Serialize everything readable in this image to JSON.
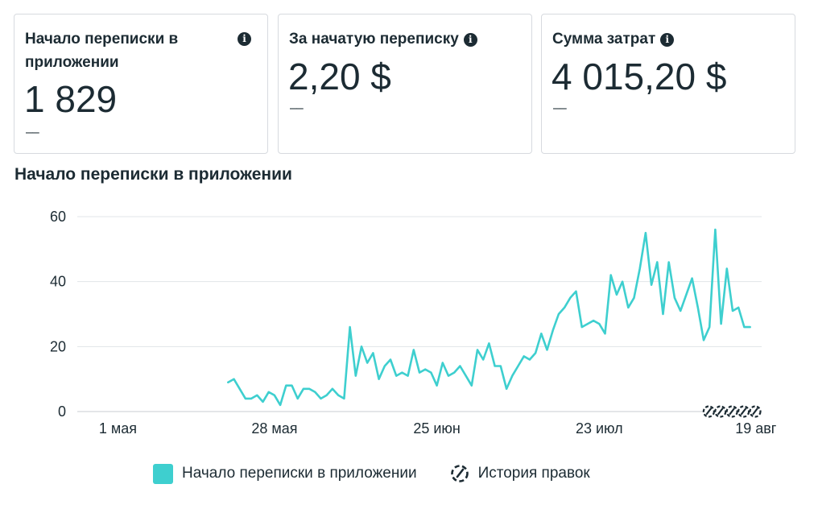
{
  "cards": [
    {
      "label": "Начало переписки в приложении",
      "value": "1 829",
      "delta": "––",
      "info_icon": "info-icon"
    },
    {
      "label": "За начатую переписку",
      "value": "2,20 $",
      "delta": "––",
      "info_icon": "info-icon"
    },
    {
      "label": "Сумма затрат",
      "value": "4 015,20 $",
      "delta": "––",
      "info_icon": "info-icon"
    }
  ],
  "chart_title": "Начало переписки в приложении",
  "colors": {
    "series": "#3ecfcf",
    "grid": "#e1e4e8",
    "text": "#1c2b33"
  },
  "legend": {
    "series_label": "Начало переписки в приложении",
    "history_label": "История правок",
    "history_icon": "edit-history-icon"
  },
  "chart_data": {
    "type": "line",
    "title": "Начало переписки в приложении",
    "xlabel": "",
    "ylabel": "",
    "ylim": [
      0,
      60
    ],
    "yticks": [
      0,
      20,
      40,
      60
    ],
    "x_start": "2024-04-24",
    "x_end": "2024-08-20",
    "xticks": [
      {
        "date": "2024-05-01",
        "label": "1 мая"
      },
      {
        "date": "2024-05-28",
        "label": "28 мая"
      },
      {
        "date": "2024-06-25",
        "label": "25 июн"
      },
      {
        "date": "2024-07-23",
        "label": "23 июл"
      },
      {
        "date": "2024-08-19",
        "label": "19 авг"
      }
    ],
    "grid": true,
    "legend_position": "bottom",
    "series": [
      {
        "name": "Начало переписки в приложении",
        "start_date": "2024-05-20",
        "values": [
          9,
          10,
          7,
          4,
          4,
          5,
          3,
          6,
          5,
          2,
          8,
          8,
          4,
          7,
          7,
          6,
          4,
          5,
          7,
          5,
          4,
          26,
          11,
          20,
          15,
          18,
          10,
          14,
          16,
          11,
          12,
          11,
          19,
          12,
          13,
          12,
          8,
          15,
          11,
          12,
          14,
          11,
          8,
          19,
          16,
          21,
          14,
          14,
          7,
          11,
          14,
          17,
          16,
          18,
          24,
          19,
          25,
          30,
          32,
          35,
          37,
          26,
          27,
          28,
          27,
          24,
          42,
          36,
          40,
          32,
          35,
          44,
          55,
          39,
          46,
          30,
          46,
          35,
          31,
          36,
          41,
          32,
          22,
          26,
          56,
          27,
          44,
          31,
          32,
          26,
          26
        ]
      }
    ]
  }
}
